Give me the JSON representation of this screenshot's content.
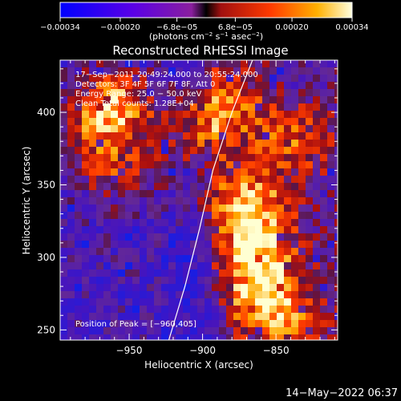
{
  "chart_data": {
    "type": "heatmap",
    "title": "Reconstructed RHESSI Image",
    "xlabel": "Heliocentric X (arcsec)",
    "ylabel": "Heliocentric Y (arcsec)",
    "xlim": [
      -997,
      -808
    ],
    "ylim": [
      243,
      436
    ],
    "x_ticks": [
      -950,
      -900,
      -850
    ],
    "x_tick_labels": [
      "−950",
      "−900",
      "−850"
    ],
    "y_ticks": [
      250,
      300,
      350,
      400
    ],
    "y_tick_labels": [
      "250",
      "300",
      "350",
      "400"
    ],
    "colorbar": {
      "range": [
        -0.00034,
        0.00034
      ],
      "tick_values": [
        -0.00034,
        -0.0002,
        -6.8e-05,
        6.8e-05,
        0.0002,
        0.00034
      ],
      "tick_labels": [
        "−0.00034",
        "−0.00020",
        "−6.8e−05",
        "6.8e−05",
        "0.00020",
        "0.00034"
      ],
      "unit_label_parts": [
        "(photons cm",
        "−2",
        " s",
        "−1",
        " asec",
        "−2",
        ")"
      ]
    },
    "annotations": {
      "time_range": "17−Sep−2011 20:49:24.000 to 20:55:24.000",
      "detectors": "Detectors: 3F 4F 5F 6F 7F 8F, Att 0",
      "energy_range": "Energy Range: 25.0 − 50.0 keV",
      "algorithm": "Clean   Total counts: 1.28E+04",
      "peak": "Position of Peak = [−960,405]"
    },
    "limb_curve": [
      [
        -923,
        243
      ],
      [
        -912,
        280
      ],
      [
        -902,
        320
      ],
      [
        -893,
        360
      ],
      [
        -880,
        400
      ],
      [
        -866,
        436
      ]
    ],
    "hot_regions": [
      {
        "x": -885,
        "y": 405,
        "w": 0.55
      },
      {
        "x": -870,
        "y": 335,
        "w": 0.9
      },
      {
        "x": -865,
        "y": 300,
        "w": 0.85
      },
      {
        "x": -860,
        "y": 270,
        "w": 0.55
      },
      {
        "x": -845,
        "y": 260,
        "w": 0.5
      },
      {
        "x": -840,
        "y": 380,
        "w": 0.55
      },
      {
        "x": -960,
        "y": 405,
        "w": 1.0
      },
      {
        "x": -985,
        "y": 380,
        "w": 0.45
      },
      {
        "x": -955,
        "y": 360,
        "w": 0.5
      },
      {
        "x": -905,
        "y": 385,
        "w": 0.5
      }
    ]
  },
  "footer": {
    "timestamp": "14−May−2022 06:37"
  }
}
